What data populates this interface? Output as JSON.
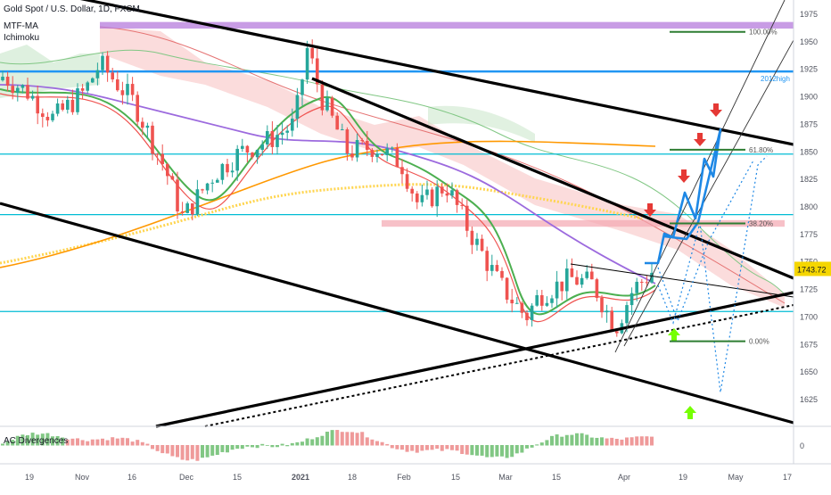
{
  "header": {
    "symbol_line": "Gold Spot / U.S. Dollar, 1D, FXCM",
    "indicator_1": "MTF-MA",
    "indicator_2": "Ichimoku",
    "sub_indicator": "AC Divergences"
  },
  "price_tag": {
    "value": "1743.72",
    "color": "#f5d600"
  },
  "annotations": {
    "fib_100": "100.00%",
    "fib_618": "61.80%",
    "fib_382": "38.20%",
    "fib_0": "0.00%",
    "high_2012": "2012high"
  },
  "colors": {
    "up_candle": "#26a69a",
    "down_candle": "#ef5350",
    "resistance_band": "#b57bdc",
    "support_line": "#2196f3",
    "teal_line": "#00bcd4",
    "kumo_red": "#f8bfbf",
    "kumo_green": "#c8e6c9",
    "ma_purple": "#9c6ade",
    "ma_green": "#4caf50",
    "ma_orange": "#ff9800",
    "fib_green": "#2e7d32",
    "arrow_red": "#e53935",
    "arrow_green": "#76ff03",
    "projection_blue": "#1e88e5"
  },
  "chart_data": {
    "type": "candlestick",
    "y_axis": {
      "ticks": [
        1975,
        1950,
        1925,
        1900,
        1875,
        1850,
        1825,
        1800,
        1775,
        1750,
        1725,
        1700,
        1675,
        1650,
        1625
      ],
      "range": [
        1612,
        1980
      ]
    },
    "x_axis": {
      "ticks": [
        "19",
        "Nov",
        "16",
        "Dec",
        "15",
        "2021",
        "18",
        "Feb",
        "15",
        "Mar",
        "15",
        "Apr",
        "19",
        "May",
        "17"
      ]
    },
    "sub_axis": {
      "ticks": [
        "0"
      ]
    },
    "levels": [
      {
        "name": "resistance-band",
        "low": 1962,
        "high": 1968
      },
      {
        "name": "2012-high",
        "value": 1923
      },
      {
        "name": "teal-1848",
        "value": 1848
      },
      {
        "name": "teal-1793",
        "value": 1793
      },
      {
        "name": "teal-1705",
        "value": 1705
      }
    ],
    "fibonacci": [
      {
        "label": "100.00%",
        "value": 1959
      },
      {
        "label": "61.80%",
        "value": 1852
      },
      {
        "label": "38.20%",
        "value": 1785
      },
      {
        "label": "0.00%",
        "value": 1678
      }
    ],
    "last_price": 1743.72
  }
}
